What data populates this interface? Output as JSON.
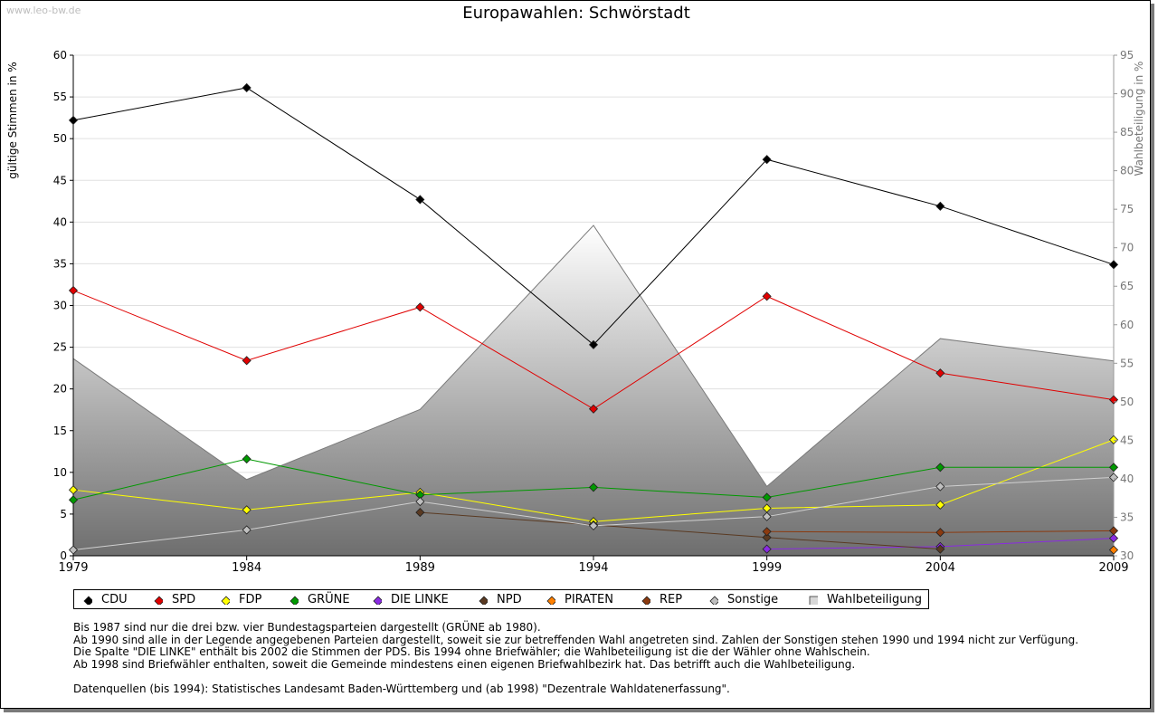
{
  "watermark": "www.leo-bw.de",
  "chart_data": {
    "type": "line",
    "title": "Europawahlen: Schwörstadt",
    "x": [
      "1979",
      "1984",
      "1989",
      "1994",
      "1999",
      "2004",
      "2009"
    ],
    "ylabel": "gültige Stimmen in %",
    "ylabel_right": "Wahlbeteiligung in %",
    "ylim": [
      0,
      60
    ],
    "ylim_right": [
      30,
      95
    ],
    "yticks": [
      0,
      5,
      10,
      15,
      20,
      25,
      30,
      35,
      40,
      45,
      50,
      55,
      60
    ],
    "yticks_right": [
      30,
      35,
      40,
      45,
      50,
      55,
      60,
      65,
      70,
      75,
      80,
      85,
      90,
      95
    ],
    "grid": true,
    "series": [
      {
        "name": "CDU",
        "color": "#000000",
        "values": [
          52.2,
          56.1,
          42.7,
          25.3,
          47.5,
          41.9,
          34.9
        ]
      },
      {
        "name": "SPD",
        "color": "#e00000",
        "values": [
          31.8,
          23.4,
          29.8,
          17.6,
          31.1,
          21.9,
          18.7
        ]
      },
      {
        "name": "FDP",
        "color": "#ffff00",
        "values": [
          7.9,
          5.5,
          7.6,
          4.1,
          5.7,
          6.1,
          13.9
        ]
      },
      {
        "name": "GRÜNE",
        "color": "#009900",
        "values": [
          6.7,
          11.6,
          7.3,
          8.2,
          7.0,
          10.6,
          10.6
        ]
      },
      {
        "name": "DIE LINKE",
        "color": "#8a2be2",
        "values": [
          null,
          null,
          null,
          null,
          0.8,
          1.1,
          2.1
        ]
      },
      {
        "name": "NPD",
        "color": "#5a3a22",
        "values": [
          null,
          null,
          5.2,
          3.7,
          2.2,
          0.8,
          null
        ]
      },
      {
        "name": "PIRATEN",
        "color": "#ff8000",
        "values": [
          null,
          null,
          null,
          null,
          null,
          null,
          0.7
        ]
      },
      {
        "name": "REP",
        "color": "#8b3a0f",
        "values": [
          null,
          null,
          null,
          null,
          2.9,
          2.8,
          3.0
        ]
      },
      {
        "name": "Sonstige",
        "color": "#bfbfbf",
        "values": [
          0.7,
          3.1,
          6.5,
          3.6,
          4.7,
          8.3,
          9.4
        ]
      }
    ],
    "turnout": {
      "name": "Wahlbeteiligung",
      "values": [
        55.6,
        39.9,
        49.0,
        72.9,
        39.0,
        58.2,
        55.3
      ]
    },
    "legend_position": "bottom"
  },
  "notes": [
    "Bis 1987 sind nur die drei bzw. vier Bundestagsparteien dargestellt (GRÜNE ab 1980).",
    "Ab 1990 sind alle in der Legende angegebenen Parteien dargestellt, soweit sie zur betreffenden Wahl angetreten sind. Zahlen der Sonstigen stehen 1990 und 1994 nicht zur Verfügung.",
    "Die Spalte \"DIE LINKE\" enthält bis 2002 die Stimmen der PDS. Bis 1994 ohne Briefwähler; die Wahlbeteiligung ist die der Wähler ohne Wahlschein.",
    "Ab 1998 sind Briefwähler enthalten, soweit die Gemeinde mindestens einen eigenen Briefwahlbezirk hat. Das betrifft auch die Wahlbeteiligung.",
    "",
    "Datenquellen (bis 1994): Statistisches Landesamt Baden-Württemberg und (ab 1998) \"Dezentrale Wahldatenerfassung\"."
  ]
}
